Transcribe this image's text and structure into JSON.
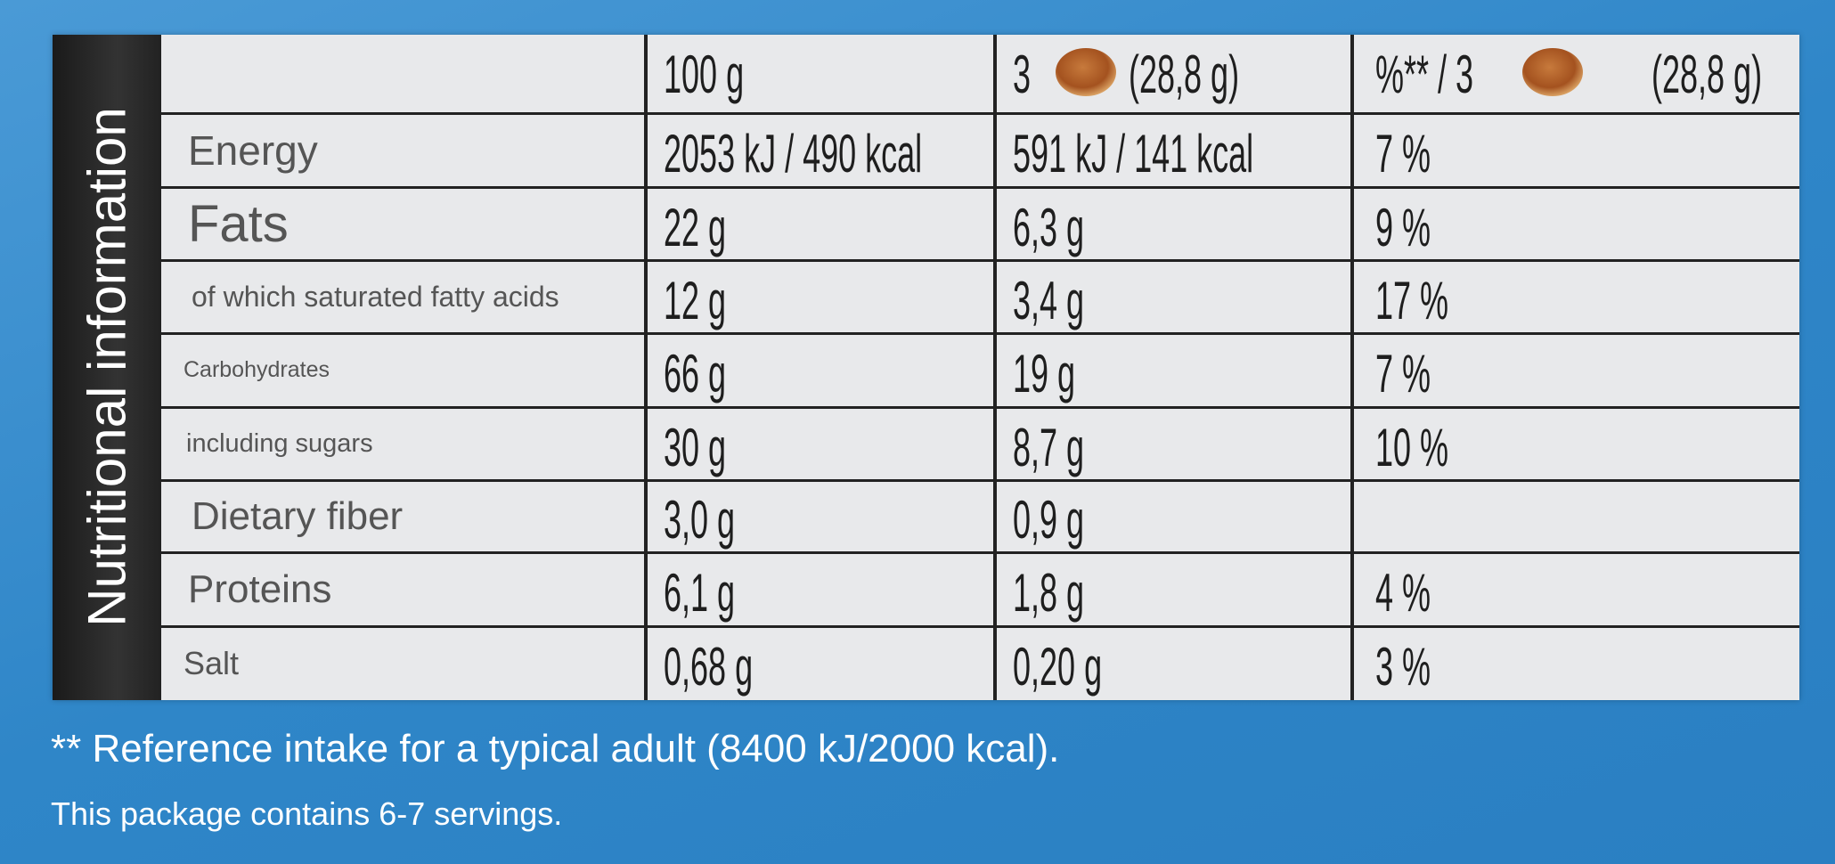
{
  "title": "Nutritional information",
  "table": {
    "header": [
      "100 g",
      [
        "3",
        "(28,8 g)"
      ],
      [
        "%** / 3",
        "(28,8 g)"
      ]
    ],
    "rows": [
      [
        "Energy",
        "2053 kJ / 490 kcal",
        "591 kJ / 141 kcal",
        "7 %"
      ],
      [
        "Fats",
        "22 g",
        "6,3 g",
        "9 %"
      ],
      [
        "of which saturated fatty acids",
        "12 g",
        "3,4 g",
        "17 %"
      ],
      [
        "Carbohydrates",
        "66 g",
        "19 g",
        "7 %"
      ],
      [
        "including sugars",
        "30 g",
        "8,7 g",
        "10 %"
      ],
      [
        "Dietary fiber",
        "3,0 g",
        "0,9 g"
      ],
      [
        "Proteins",
        "6,1 g",
        "1,8 g",
        "4 %"
      ],
      [
        "Salt",
        "0,68 g",
        "0,20 g",
        "3 %"
      ]
    ]
  },
  "footnote": "** Reference intake for a typical adult (8400 kJ/2000 kcal).",
  "servings_note": "This package contains 6-7 servings."
}
